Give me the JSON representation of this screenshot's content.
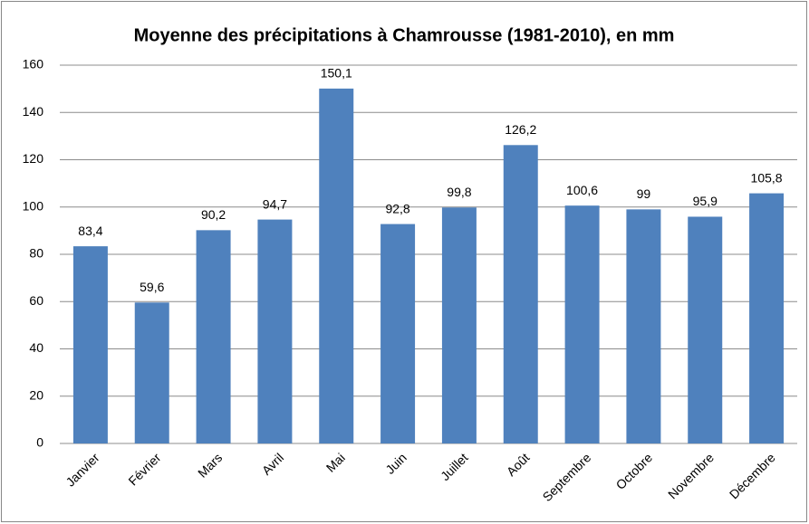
{
  "chart_data": {
    "type": "bar",
    "title": "Moyenne des précipitations à Chamrousse (1981-2010), en mm",
    "categories": [
      "Janvier",
      "Février",
      "Mars",
      "Avril",
      "Mai",
      "Juin",
      "Juillet",
      "Août",
      "Septembre",
      "Octobre",
      "Novembre",
      "Décembre"
    ],
    "values": [
      83.4,
      59.6,
      90.2,
      94.7,
      150.1,
      92.8,
      99.8,
      126.2,
      100.6,
      99,
      95.9,
      105.8
    ],
    "value_labels": [
      "83,4",
      "59,6",
      "90,2",
      "94,7",
      "150,1",
      "92,8",
      "99,8",
      "126,2",
      "100,6",
      "99",
      "95,9",
      "105,8"
    ],
    "color": "#4f81bd",
    "ylim": [
      0,
      160
    ],
    "yticks": [
      0,
      20,
      40,
      60,
      80,
      100,
      120,
      140,
      160
    ],
    "grid": true
  }
}
